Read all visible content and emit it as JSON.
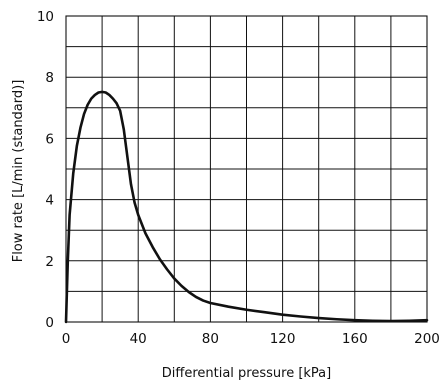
{
  "chart_data": {
    "type": "line",
    "title": "",
    "xlabel": "Differential pressure [kPa]",
    "ylabel": "Flow rate [L/min (standard)]",
    "xlim": [
      0,
      200
    ],
    "ylim": [
      0,
      10
    ],
    "x_ticks": [
      0,
      40,
      80,
      120,
      160,
      200
    ],
    "x_tick_labels": [
      "0",
      "40",
      "80",
      "120",
      "160",
      "200"
    ],
    "y_ticks": [
      0,
      2,
      4,
      6,
      8,
      10
    ],
    "y_tick_labels": [
      "0",
      "2",
      "4",
      "6",
      "8",
      "10"
    ],
    "grid": true,
    "grid_x_step": 20,
    "grid_y_step": 1,
    "series": [
      {
        "name": "",
        "color": "#111111",
        "x": [
          0,
          1,
          2,
          4,
          6,
          8,
          10,
          12,
          14,
          16,
          18,
          20,
          22,
          24,
          26,
          28,
          30,
          32,
          34,
          36,
          38,
          40,
          44,
          48,
          52,
          56,
          60,
          64,
          68,
          72,
          76,
          80,
          90,
          100,
          110,
          120,
          130,
          140,
          150,
          160,
          170,
          180,
          190,
          200
        ],
        "y": [
          0,
          2.0,
          3.5,
          4.85,
          5.75,
          6.35,
          6.8,
          7.1,
          7.3,
          7.42,
          7.5,
          7.52,
          7.5,
          7.42,
          7.3,
          7.15,
          6.9,
          6.3,
          5.4,
          4.5,
          3.9,
          3.5,
          2.9,
          2.45,
          2.05,
          1.72,
          1.42,
          1.18,
          0.98,
          0.82,
          0.7,
          0.62,
          0.5,
          0.4,
          0.32,
          0.24,
          0.18,
          0.13,
          0.09,
          0.06,
          0.04,
          0.03,
          0.04,
          0.06
        ]
      }
    ]
  }
}
